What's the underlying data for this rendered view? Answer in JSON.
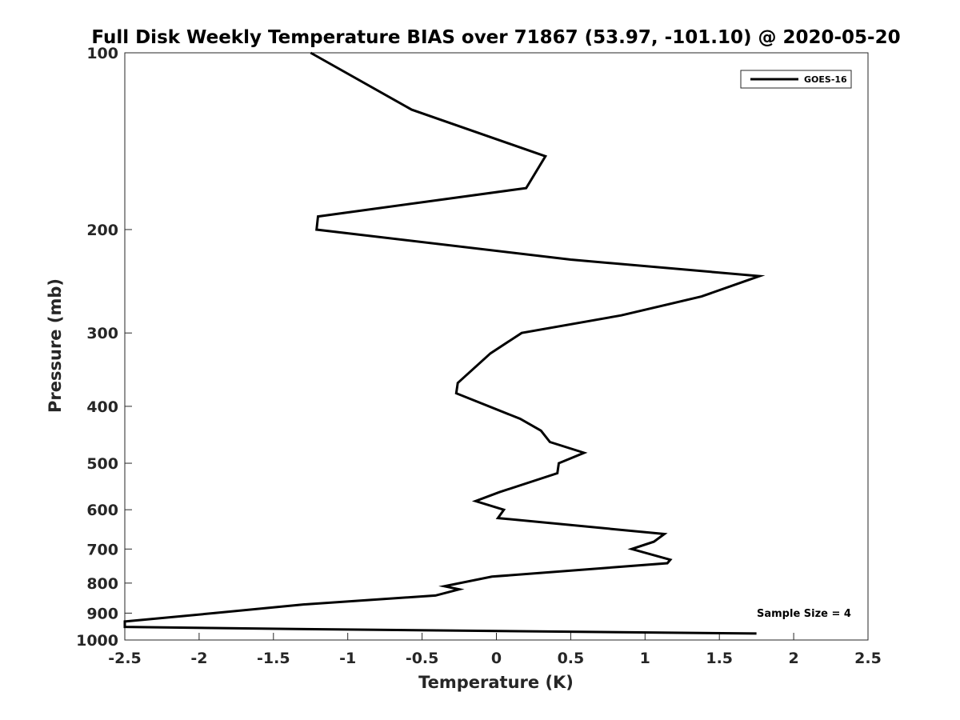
{
  "chart_data": {
    "type": "line",
    "title": "Full Disk Weekly Temperature BIAS over 71867 (53.97, -101.10) @ 2020-05-20",
    "xlabel": "Temperature (K)",
    "ylabel": "Pressure (mb)",
    "xlim": [
      -2.5,
      2.5
    ],
    "ylim": [
      100,
      1000
    ],
    "y_scale": "log",
    "y_reversed": true,
    "grid": false,
    "x_ticks": [
      "-2.5",
      "-2",
      "-1.5",
      "-1",
      "-0.5",
      "0",
      "0.5",
      "1",
      "1.5",
      "2",
      "2.5"
    ],
    "y_ticks": [
      "100",
      "200",
      "300",
      "400",
      "500",
      "600",
      "700",
      "800",
      "900",
      "1000"
    ],
    "legend": {
      "position": "top-right",
      "entries": [
        "GOES-16"
      ]
    },
    "annotation": "Sample Size = 4",
    "series": [
      {
        "name": "GOES-16",
        "color": "#000000",
        "x": [
          -1.25,
          -0.57,
          0.33,
          0.2,
          -1.2,
          -1.21,
          0.5,
          1.77,
          1.38,
          0.84,
          0.17,
          -0.04,
          -0.26,
          -0.27,
          0.16,
          0.3,
          0.36,
          0.59,
          0.42,
          0.41,
          0.02,
          -0.14,
          0.05,
          0.01,
          1.13,
          1.06,
          0.91,
          1.17,
          1.15,
          -0.03,
          -0.35,
          -0.25,
          -0.41,
          -1.3,
          -1.9,
          -2.5,
          -2.5,
          -1.35,
          1.75
        ],
        "y": [
          100,
          125,
          150,
          170,
          190,
          200,
          225,
          240,
          260,
          280,
          300,
          325,
          365,
          380,
          420,
          440,
          460,
          480,
          500,
          520,
          560,
          580,
          600,
          620,
          660,
          680,
          700,
          730,
          740,
          780,
          810,
          820,
          840,
          870,
          900,
          930,
          950,
          958,
          975
        ]
      }
    ]
  }
}
